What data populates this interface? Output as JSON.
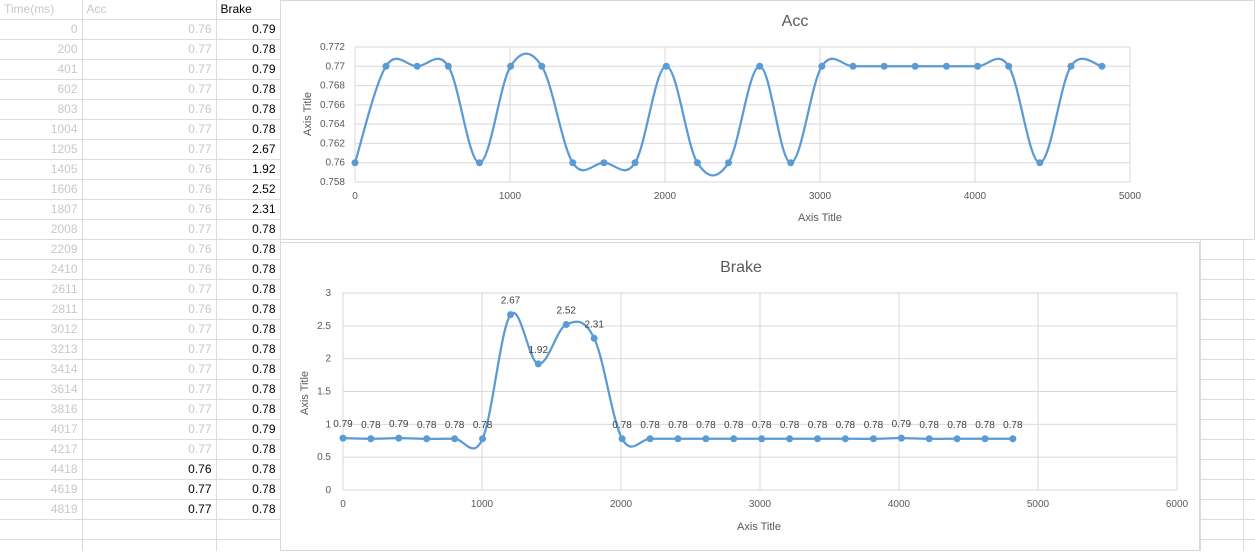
{
  "sheet": {
    "headers": [
      "Time(ms)",
      "Acc",
      "Brake"
    ],
    "rows": [
      [
        "0",
        "0.76",
        "0.79"
      ],
      [
        "200",
        "0.77",
        "0.78"
      ],
      [
        "401",
        "0.77",
        "0.79"
      ],
      [
        "602",
        "0.77",
        "0.78"
      ],
      [
        "803",
        "0.76",
        "0.78"
      ],
      [
        "1004",
        "0.77",
        "0.78"
      ],
      [
        "1205",
        "0.77",
        "2.67"
      ],
      [
        "1405",
        "0.76",
        "1.92"
      ],
      [
        "1606",
        "0.76",
        "2.52"
      ],
      [
        "1807",
        "0.76",
        "2.31"
      ],
      [
        "2008",
        "0.77",
        "0.78"
      ],
      [
        "2209",
        "0.76",
        "0.78"
      ],
      [
        "2410",
        "0.76",
        "0.78"
      ],
      [
        "2611",
        "0.77",
        "0.78"
      ],
      [
        "2811",
        "0.76",
        "0.78"
      ],
      [
        "3012",
        "0.77",
        "0.78"
      ],
      [
        "3213",
        "0.77",
        "0.78"
      ],
      [
        "3414",
        "0.77",
        "0.78"
      ],
      [
        "3614",
        "0.77",
        "0.78"
      ],
      [
        "3816",
        "0.77",
        "0.78"
      ],
      [
        "4017",
        "0.77",
        "0.79"
      ],
      [
        "4217",
        "0.77",
        "0.78"
      ],
      [
        "4418",
        "0.76",
        "0.78"
      ],
      [
        "4619",
        "0.77",
        "0.78"
      ],
      [
        "4819",
        "0.77",
        "0.78"
      ]
    ]
  },
  "chart_data": [
    {
      "type": "scatter",
      "title": "Acc",
      "xlabel": "Axis Title",
      "ylabel": "Axis Title",
      "xlim": [
        0,
        5000
      ],
      "ylim": [
        0.758,
        0.772
      ],
      "xticks": [
        "0",
        "1000",
        "2000",
        "3000",
        "4000",
        "5000"
      ],
      "yticks": [
        "0.758",
        "0.76",
        "0.762",
        "0.764",
        "0.766",
        "0.768",
        "0.77",
        "0.772"
      ],
      "smooth": true,
      "grid": true,
      "x": [
        0,
        200,
        401,
        602,
        803,
        1004,
        1205,
        1405,
        1606,
        1807,
        2008,
        2209,
        2410,
        2611,
        2811,
        3012,
        3213,
        3414,
        3614,
        3816,
        4017,
        4217,
        4418,
        4619,
        4819
      ],
      "y": [
        0.76,
        0.77,
        0.77,
        0.77,
        0.76,
        0.77,
        0.77,
        0.76,
        0.76,
        0.76,
        0.77,
        0.76,
        0.76,
        0.77,
        0.76,
        0.77,
        0.77,
        0.77,
        0.77,
        0.77,
        0.77,
        0.77,
        0.76,
        0.77,
        0.77
      ],
      "color": "#5b9bd5"
    },
    {
      "type": "scatter",
      "title": "Brake",
      "xlabel": "Axis Title",
      "ylabel": "Axis Title",
      "xlim": [
        0,
        6000
      ],
      "ylim": [
        0,
        3
      ],
      "xticks": [
        "0",
        "1000",
        "2000",
        "3000",
        "4000",
        "5000",
        "6000"
      ],
      "yticks": [
        "0",
        "0.5",
        "1",
        "1.5",
        "2",
        "2.5",
        "3"
      ],
      "smooth": true,
      "grid": true,
      "data_labels": [
        "0.79",
        "0.78",
        "0.79",
        "0.78",
        "0.78",
        "0.78",
        "2.67",
        "1.92",
        "2.52",
        "2.31",
        "0.78",
        "0.78",
        "0.78",
        "0.78",
        "0.78",
        "0.78",
        "0.78",
        "0.78",
        "0.78",
        "0.78",
        "0.79",
        "0.78",
        "0.78",
        "0.78",
        "0.78"
      ],
      "x": [
        0,
        200,
        401,
        602,
        803,
        1004,
        1205,
        1405,
        1606,
        1807,
        2008,
        2209,
        2410,
        2611,
        2811,
        3012,
        3213,
        3414,
        3614,
        3816,
        4017,
        4217,
        4418,
        4619,
        4819
      ],
      "y": [
        0.79,
        0.78,
        0.79,
        0.78,
        0.78,
        0.78,
        2.67,
        1.92,
        2.52,
        2.31,
        0.78,
        0.78,
        0.78,
        0.78,
        0.78,
        0.78,
        0.78,
        0.78,
        0.78,
        0.78,
        0.79,
        0.78,
        0.78,
        0.78,
        0.78
      ],
      "color": "#5b9bd5"
    }
  ]
}
